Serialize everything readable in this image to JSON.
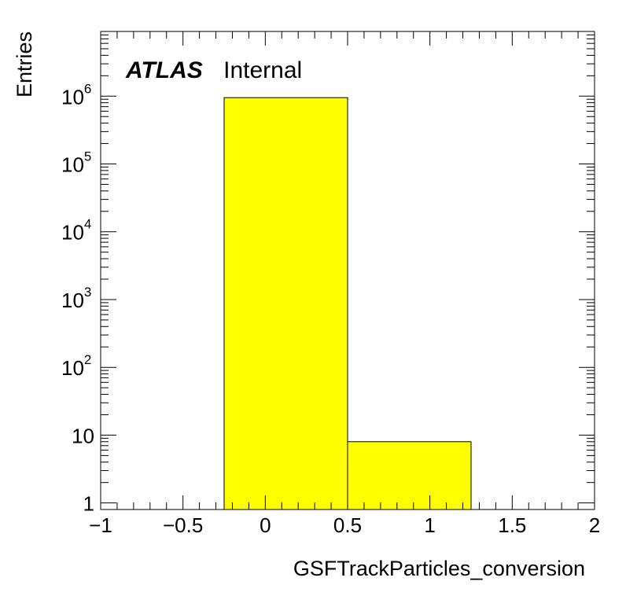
{
  "chart_data": {
    "type": "bar",
    "histogram": true,
    "bins": [
      {
        "low": -0.25,
        "high": 0.5,
        "value": 950000
      },
      {
        "low": 0.5,
        "high": 1.25,
        "value": 8
      }
    ],
    "xlabel": "GSFTrackParticles_conversion",
    "ylabel": "Entries",
    "xlim": [
      -1,
      2
    ],
    "ylim": [
      0.8,
      9000000
    ],
    "yscale": "log",
    "x_ticks": [
      {
        "value": -1,
        "label": "−1"
      },
      {
        "value": -0.5,
        "label": "−0.5"
      },
      {
        "value": 0,
        "label": "0"
      },
      {
        "value": 0.5,
        "label": "0.5"
      },
      {
        "value": 1,
        "label": "1"
      },
      {
        "value": 1.5,
        "label": "1.5"
      },
      {
        "value": 2,
        "label": "2"
      }
    ],
    "y_ticks": [
      {
        "value": 1,
        "base": "1",
        "exp": ""
      },
      {
        "value": 10,
        "base": "10",
        "exp": ""
      },
      {
        "value": 100,
        "base": "10",
        "exp": "2"
      },
      {
        "value": 1000,
        "base": "10",
        "exp": "3"
      },
      {
        "value": 10000,
        "base": "10",
        "exp": "4"
      },
      {
        "value": 100000,
        "base": "10",
        "exp": "5"
      },
      {
        "value": 1000000,
        "base": "10",
        "exp": "6"
      }
    ],
    "fill_color": "#ffff00",
    "grid": false,
    "annotation": {
      "bold": "ATLAS",
      "normal": "Internal"
    }
  }
}
